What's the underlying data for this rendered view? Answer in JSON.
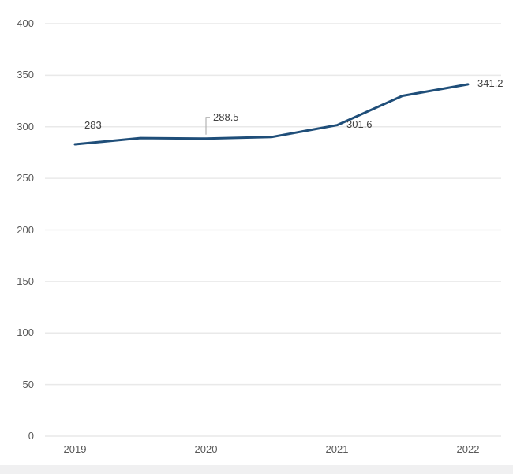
{
  "chart_data": {
    "type": "line",
    "title": "",
    "xlabel": "",
    "ylabel": "",
    "x_ticks": [
      "2019",
      "2020",
      "2021",
      "2022"
    ],
    "y_ticks": [
      400,
      350,
      300,
      250,
      200,
      150,
      100,
      50,
      0
    ],
    "ylim": [
      0,
      400
    ],
    "xlim": [
      2019,
      2022
    ],
    "grid": "horizontal",
    "legend": "none",
    "series": [
      {
        "name": "value",
        "x": [
          2019,
          2019.5,
          2020,
          2020.5,
          2021,
          2021.5,
          2022
        ],
        "values": [
          283,
          289,
          288.5,
          290,
          301.6,
          330,
          341.2
        ]
      }
    ],
    "point_labels": [
      {
        "x": 2019,
        "value": 283,
        "text": "283",
        "placement": "above-right"
      },
      {
        "x": 2020,
        "value": 288.5,
        "text": "288.5",
        "placement": "callout-above"
      },
      {
        "x": 2021,
        "value": 301.6,
        "text": "301.6",
        "placement": "right"
      },
      {
        "x": 2022,
        "value": 341.2,
        "text": "341.2",
        "placement": "right"
      }
    ],
    "colors": {
      "line": "#1f4e79",
      "gridline": "#e9e9e9",
      "axis_label": "#595959",
      "data_label": "#404040",
      "callout": "#a6a6a6",
      "footer_strip": "#f0f0f1",
      "background": "#ffffff"
    }
  }
}
